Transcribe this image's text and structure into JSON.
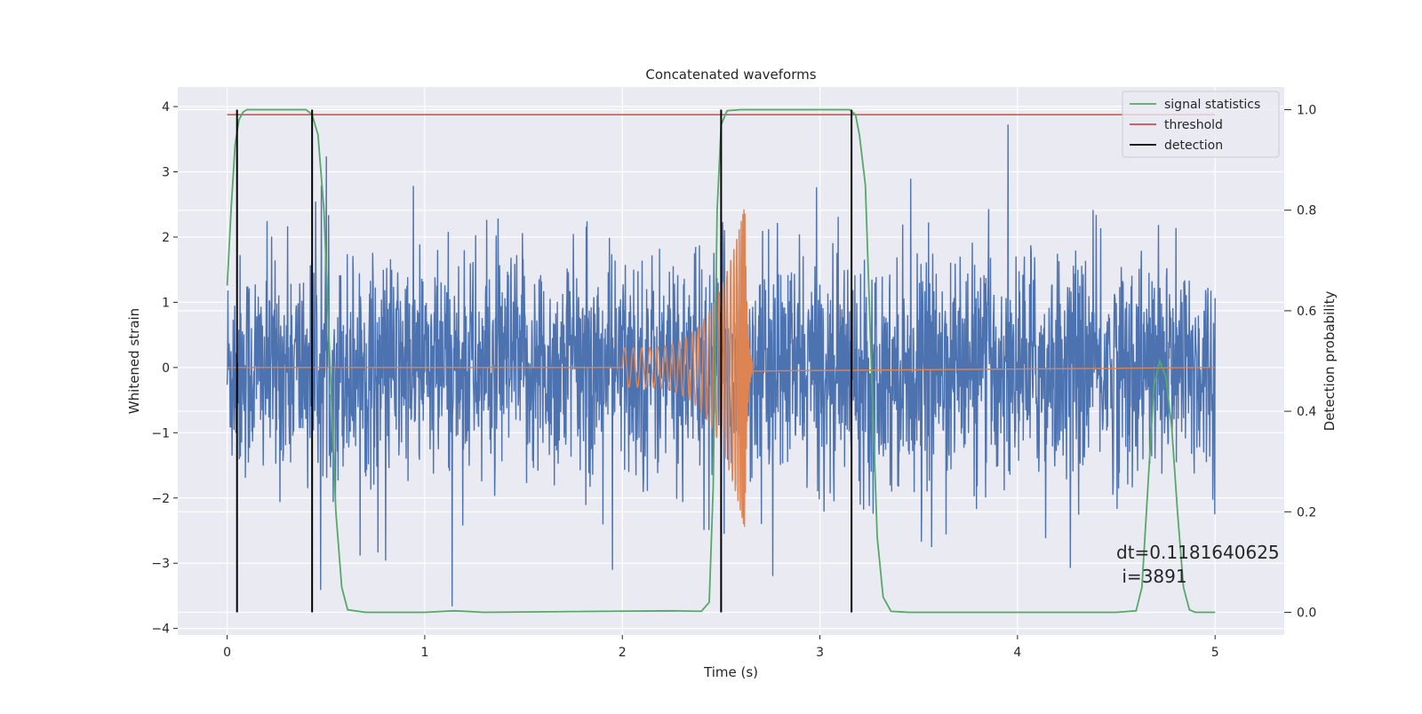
{
  "chart_data": {
    "type": "line",
    "title": "Concatenated waveforms",
    "xlabel": "Time (s)",
    "ylabel": "Whitened strain",
    "y2label": "Detection probability",
    "xlim": [
      -0.25,
      5.35
    ],
    "ylim": [
      -4.1,
      4.3
    ],
    "y2lim": [
      -0.045,
      1.045
    ],
    "x_ticks": [
      0,
      1,
      2,
      3,
      4,
      5
    ],
    "y_ticks": [
      -4,
      -3,
      -2,
      -1,
      0,
      1,
      2,
      3,
      4
    ],
    "y2_ticks": [
      0.0,
      0.2,
      0.4,
      0.6,
      0.8,
      1.0
    ],
    "x_tick_labels": [
      "0",
      "1",
      "2",
      "3",
      "4",
      "5"
    ],
    "y_tick_labels": [
      "−4",
      "−3",
      "−2",
      "−1",
      "0",
      "1",
      "2",
      "3",
      "4"
    ],
    "y2_tick_labels": [
      "0.0",
      "0.2",
      "0.4",
      "0.6",
      "0.8",
      "1.0"
    ],
    "grid": true,
    "legend_position": "top-right",
    "style": "seaborn-darkgrid",
    "colors": {
      "background": "#eaeaf2",
      "grid": "#ffffff",
      "strain": "#4c72b0",
      "template": "#dd8452",
      "signal_statistics": "#55a868",
      "threshold": "#c44e52",
      "detection": "#000000"
    },
    "series": [
      {
        "name": "strain",
        "axis": "left",
        "description_kind": "noise",
        "x_range": [
          0,
          5
        ],
        "amplitude_typical": 1.0,
        "amplitude_peak": 3.9
      },
      {
        "name": "template",
        "axis": "left",
        "kind": "chirp",
        "x_start": 2.0,
        "x_merger": 2.62,
        "x_end": 5.0,
        "amplitude_start": 0.3,
        "amplitude_peak": 2.5
      },
      {
        "name": "signal statistics",
        "axis": "right",
        "points": [
          [
            0.0,
            0.65
          ],
          [
            0.02,
            0.8
          ],
          [
            0.04,
            0.93
          ],
          [
            0.06,
            0.98
          ],
          [
            0.08,
            0.995
          ],
          [
            0.1,
            1.0
          ],
          [
            0.4,
            1.0
          ],
          [
            0.43,
            0.99
          ],
          [
            0.46,
            0.95
          ],
          [
            0.49,
            0.8
          ],
          [
            0.52,
            0.5
          ],
          [
            0.55,
            0.2
          ],
          [
            0.58,
            0.05
          ],
          [
            0.61,
            0.005
          ],
          [
            0.7,
            0.0
          ],
          [
            1.0,
            0.0
          ],
          [
            1.15,
            0.003
          ],
          [
            1.3,
            0.0
          ],
          [
            2.25,
            0.003
          ],
          [
            2.4,
            0.002
          ],
          [
            2.44,
            0.02
          ],
          [
            2.46,
            0.25
          ],
          [
            2.48,
            0.8
          ],
          [
            2.5,
            0.97
          ],
          [
            2.53,
            0.998
          ],
          [
            2.6,
            1.0
          ],
          [
            3.15,
            1.0
          ],
          [
            3.18,
            0.99
          ],
          [
            3.2,
            0.95
          ],
          [
            3.23,
            0.85
          ],
          [
            3.26,
            0.5
          ],
          [
            3.29,
            0.15
          ],
          [
            3.32,
            0.03
          ],
          [
            3.36,
            0.002
          ],
          [
            3.45,
            0.0
          ],
          [
            4.5,
            0.0
          ],
          [
            4.6,
            0.003
          ],
          [
            4.63,
            0.05
          ],
          [
            4.66,
            0.25
          ],
          [
            4.69,
            0.45
          ],
          [
            4.72,
            0.5
          ],
          [
            4.75,
            0.47
          ],
          [
            4.78,
            0.37
          ],
          [
            4.81,
            0.2
          ],
          [
            4.84,
            0.05
          ],
          [
            4.87,
            0.005
          ],
          [
            4.9,
            0.0
          ],
          [
            5.0,
            0.0
          ]
        ]
      },
      {
        "name": "threshold",
        "axis": "right",
        "x_range": [
          0,
          5
        ],
        "value": 0.99
      },
      {
        "name": "detection",
        "axis": "right",
        "x_positions": [
          0.05,
          0.43,
          2.5,
          3.16
        ],
        "y_range": [
          0.0,
          1.0
        ]
      }
    ],
    "annotation": {
      "line1": "dt=0.1181640625",
      "line2": " i=3891",
      "x": 4.5,
      "y": -3.0
    },
    "legend": {
      "entries": [
        {
          "label": "signal statistics",
          "color": "#55a868"
        },
        {
          "label": "threshold",
          "color": "#c44e52"
        },
        {
          "label": "detection",
          "color": "#000000"
        }
      ]
    }
  }
}
